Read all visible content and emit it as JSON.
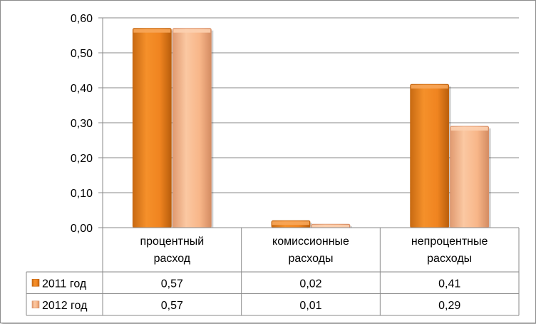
{
  "chart_data": {
    "type": "bar",
    "categories": [
      [
        "процентный",
        "расход"
      ],
      [
        "комиссионные",
        "расходы"
      ],
      [
        "непроцентные",
        "расходы"
      ]
    ],
    "series": [
      {
        "name": "2011 год",
        "values": [
          0.57,
          0.02,
          0.41
        ],
        "color": "#f0861e",
        "light": "#f7a65a",
        "dark": "#c4650f"
      },
      {
        "name": "2012 год",
        "values": [
          0.57,
          0.01,
          0.29
        ],
        "color": "#f9b88c",
        "light": "#fcd0b0",
        "dark": "#d88f68"
      }
    ],
    "table_values": [
      [
        "0,57",
        "0,02",
        "0,41"
      ],
      [
        "0,57",
        "0,01",
        "0,29"
      ]
    ],
    "ylim": [
      0,
      0.6
    ],
    "yticks": [
      "0,00",
      "0,10",
      "0,20",
      "0,30",
      "0,40",
      "0,50",
      "0,60"
    ],
    "grid": true,
    "legend": "data-table"
  }
}
